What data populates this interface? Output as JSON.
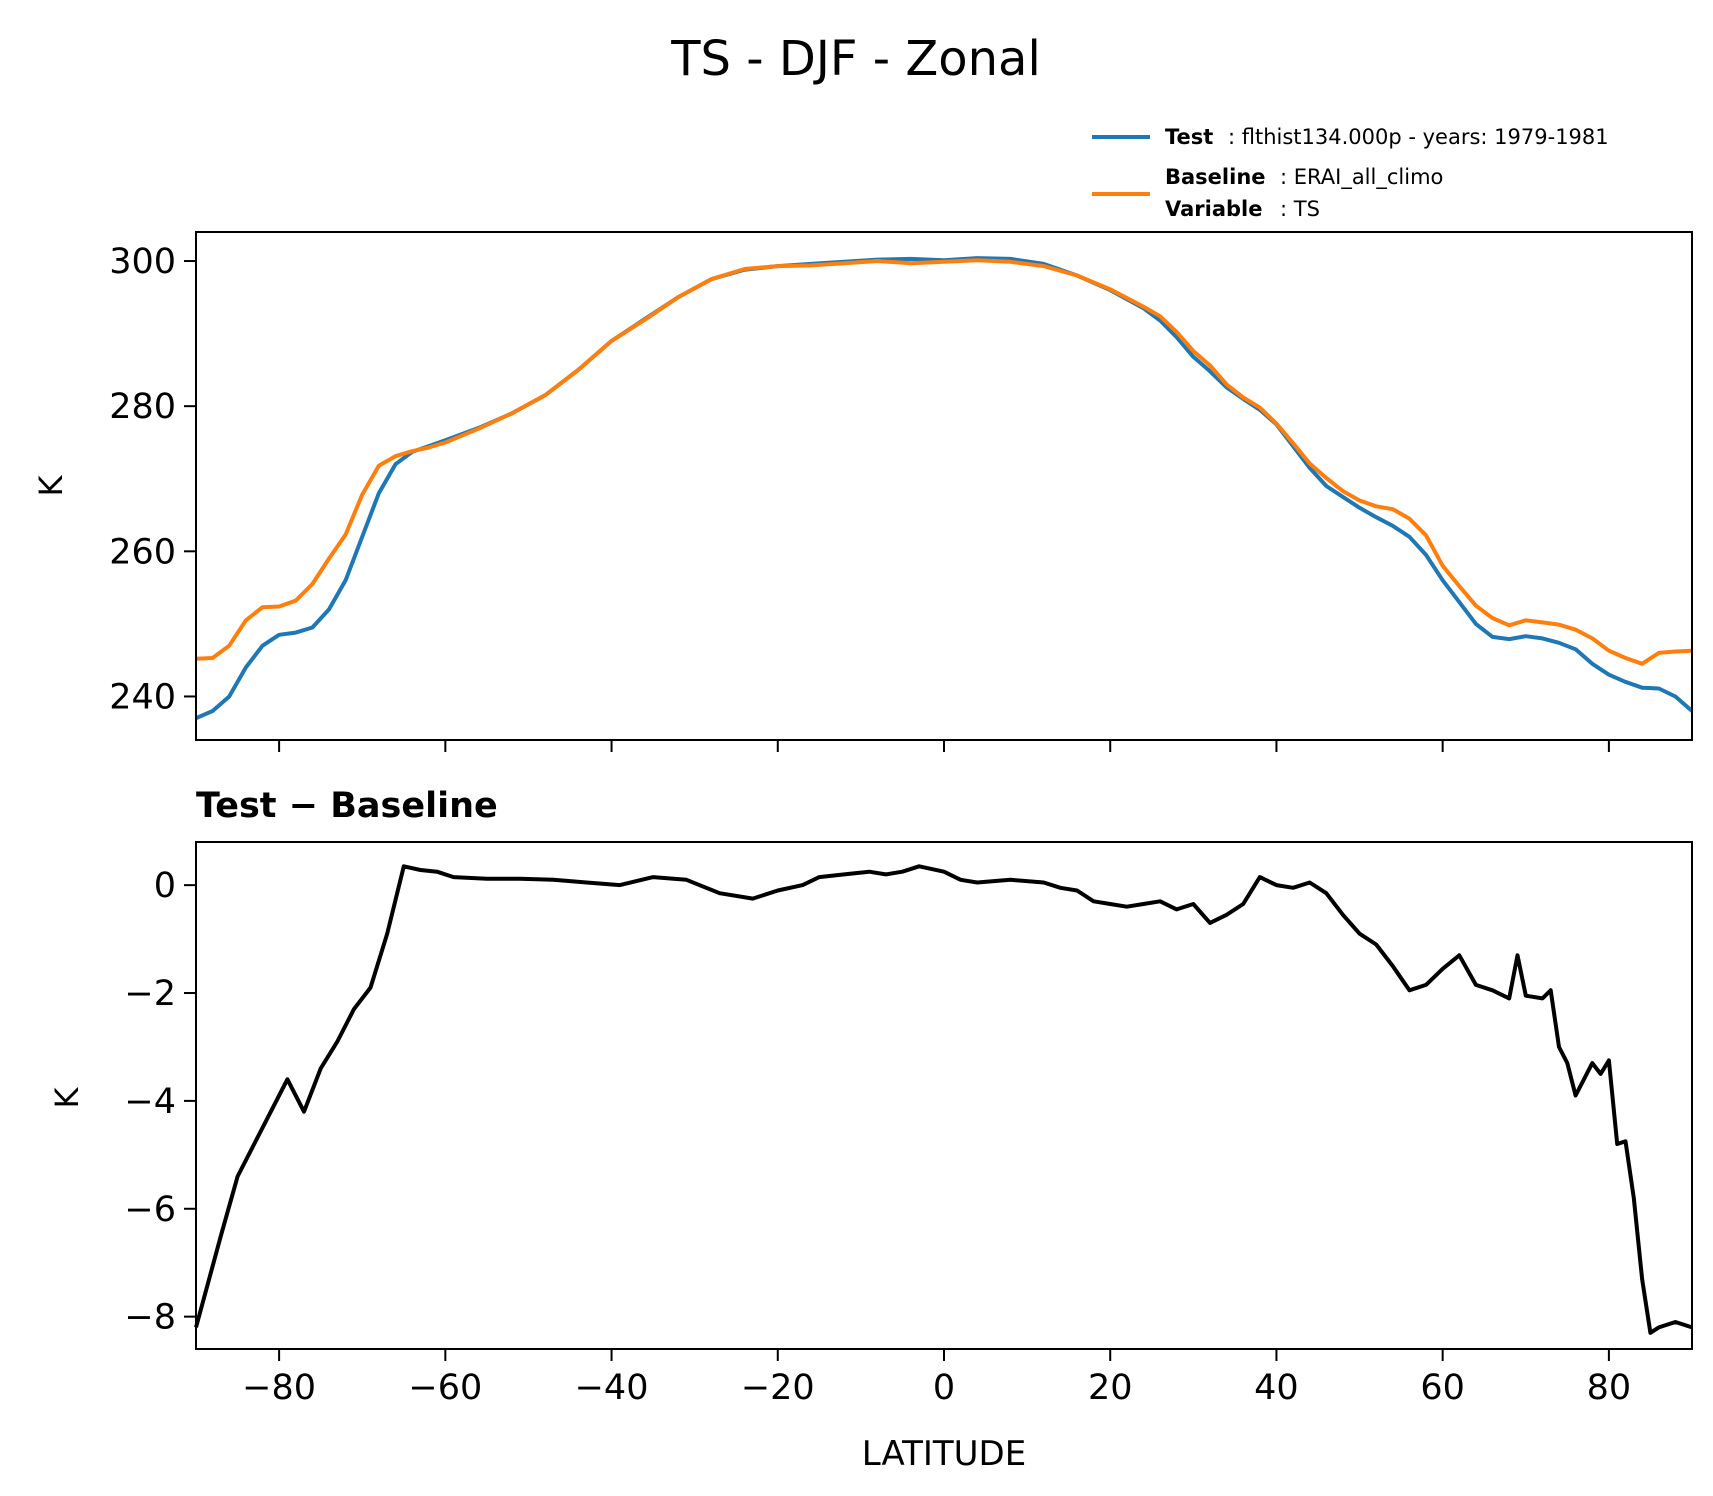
{
  "figure": {
    "title": "TS - DJF - Zonal"
  },
  "legend": {
    "test": {
      "key": "Test",
      "value": ": flthist134.000p - years: 1979-1981",
      "color": "#1f77b4"
    },
    "baseline": {
      "key": "Baseline",
      "value": ": ERAI_all_climo",
      "color": "#ff7f0e"
    },
    "variable": {
      "key": "Variable",
      "value": ": TS"
    }
  },
  "chart_data": [
    {
      "type": "line",
      "ylabel": "K",
      "xlim": [
        -90,
        90
      ],
      "ylim": [
        234,
        304
      ],
      "xticks": [
        -80,
        -60,
        -40,
        -20,
        0,
        20,
        40,
        60,
        80
      ],
      "yticks": [
        240,
        260,
        280,
        300
      ],
      "ytick_labels": [
        "240",
        "260",
        "280",
        "300"
      ],
      "grid": false,
      "legend_position": "top-right",
      "series": [
        {
          "name": "Test",
          "color": "#1f77b4",
          "x": [
            -90,
            -88,
            -86,
            -84,
            -82,
            -80,
            -78,
            -76,
            -74,
            -72,
            -70,
            -68,
            -66,
            -64,
            -62,
            -60,
            -56,
            -52,
            -48,
            -44,
            -40,
            -36,
            -32,
            -28,
            -24,
            -20,
            -16,
            -12,
            -8,
            -4,
            0,
            4,
            8,
            12,
            16,
            20,
            24,
            26,
            28,
            30,
            32,
            34,
            36,
            38,
            40,
            42,
            44,
            46,
            48,
            50,
            52,
            54,
            56,
            58,
            60,
            62,
            64,
            66,
            68,
            70,
            72,
            74,
            76,
            78,
            80,
            82,
            84,
            86,
            88,
            90
          ],
          "values": [
            237,
            238,
            240,
            244,
            247,
            248.5,
            248.8,
            249.5,
            252,
            256,
            262,
            268,
            272,
            273.7,
            274.5,
            275.3,
            277,
            279,
            281.5,
            285,
            289,
            292,
            295,
            297.5,
            298.8,
            299.3,
            299.6,
            299.9,
            300.2,
            300.3,
            300.1,
            300.4,
            300.3,
            299.6,
            298,
            296,
            293.5,
            291.8,
            289.5,
            286.8,
            284.8,
            282.6,
            281,
            279.5,
            277.5,
            274.5,
            271.5,
            269,
            267.5,
            266,
            264.7,
            263.5,
            262,
            259.5,
            256,
            253,
            250,
            248.2,
            247.9,
            248.3,
            248,
            247.4,
            246.5,
            244.5,
            243,
            242,
            241.2,
            241.1,
            240,
            238
          ]
        },
        {
          "name": "Baseline",
          "color": "#ff7f0e",
          "x": [
            -90,
            -88,
            -86,
            -84,
            -82,
            -80,
            -78,
            -76,
            -74,
            -72,
            -70,
            -68,
            -66,
            -64,
            -62,
            -60,
            -56,
            -52,
            -48,
            -44,
            -40,
            -36,
            -32,
            -28,
            -24,
            -20,
            -16,
            -12,
            -8,
            -4,
            0,
            4,
            8,
            12,
            16,
            20,
            24,
            26,
            28,
            30,
            32,
            34,
            36,
            38,
            40,
            42,
            44,
            46,
            48,
            50,
            52,
            54,
            56,
            58,
            60,
            62,
            64,
            66,
            68,
            70,
            72,
            74,
            76,
            78,
            80,
            82,
            84,
            86,
            88,
            90
          ],
          "values": [
            245.2,
            245.3,
            247,
            250.5,
            252.3,
            252.4,
            253.2,
            255.5,
            259,
            262.3,
            267.8,
            271.8,
            273.1,
            273.8,
            274.3,
            275,
            276.9,
            279,
            281.5,
            285,
            289,
            291.9,
            295,
            297.5,
            298.9,
            299.3,
            299.4,
            299.7,
            300,
            299.7,
            299.9,
            300.1,
            299.9,
            299.3,
            298,
            296.1,
            293.7,
            292.4,
            290.2,
            287.6,
            285.6,
            283,
            281.2,
            279.8,
            277.6,
            274.9,
            272.1,
            270.1,
            268.3,
            267,
            266.2,
            265.8,
            264.5,
            262.2,
            258,
            255.2,
            252.5,
            250.8,
            249.8,
            250.5,
            250.2,
            249.9,
            249.2,
            248,
            246.3,
            245.3,
            244.5,
            246,
            246.2,
            246.3
          ]
        }
      ]
    },
    {
      "type": "line",
      "title": "Test − Baseline",
      "xlabel": "LATITUDE",
      "ylabel": "K",
      "xlim": [
        -90,
        90
      ],
      "ylim": [
        -8.6,
        0.8
      ],
      "xticks": [
        -80,
        -60,
        -40,
        -20,
        0,
        20,
        40,
        60,
        80
      ],
      "xtick_labels": [
        "−80",
        "−60",
        "−40",
        "−20",
        "0",
        "20",
        "40",
        "60",
        "80"
      ],
      "yticks": [
        -8,
        -6,
        -4,
        -2,
        0
      ],
      "ytick_labels": [
        "−8",
        "−6",
        "−4",
        "−2",
        "0"
      ],
      "grid": false,
      "series": [
        {
          "color": "#000000",
          "x": [
            -90,
            -87,
            -85,
            -83,
            -81,
            -79,
            -77,
            -75,
            -73,
            -71,
            -69,
            -67,
            -65,
            -63,
            -61,
            -59,
            -55,
            -51,
            -47,
            -43,
            -39,
            -35,
            -31,
            -27,
            -23,
            -20,
            -17,
            -15,
            -12,
            -9,
            -7,
            -5,
            -3,
            0,
            2,
            4,
            8,
            12,
            14,
            16,
            18,
            20,
            22,
            24,
            26,
            28,
            30,
            32,
            34,
            36,
            38,
            40,
            42,
            44,
            46,
            48,
            50,
            52,
            54,
            56,
            58,
            60,
            62,
            64,
            66,
            68,
            69,
            70,
            72,
            73,
            74,
            75,
            76,
            78,
            79,
            80,
            81,
            82,
            83,
            84,
            85,
            86,
            88,
            90
          ],
          "values": [
            -8.2,
            -6.5,
            -5.4,
            -4.8,
            -4.2,
            -3.6,
            -4.2,
            -3.4,
            -2.9,
            -2.3,
            -1.9,
            -0.9,
            0.35,
            0.28,
            0.25,
            0.15,
            0.12,
            0.12,
            0.1,
            0.05,
            0.0,
            0.15,
            0.1,
            -0.15,
            -0.25,
            -0.1,
            0.0,
            0.15,
            0.2,
            0.25,
            0.2,
            0.25,
            0.35,
            0.25,
            0.1,
            0.05,
            0.1,
            0.05,
            -0.05,
            -0.1,
            -0.3,
            -0.35,
            -0.4,
            -0.35,
            -0.3,
            -0.45,
            -0.35,
            -0.7,
            -0.55,
            -0.35,
            0.15,
            0.0,
            -0.05,
            0.05,
            -0.15,
            -0.55,
            -0.9,
            -1.1,
            -1.5,
            -1.95,
            -1.85,
            -1.55,
            -1.3,
            -1.85,
            -1.95,
            -2.1,
            -1.3,
            -2.05,
            -2.1,
            -1.95,
            -3.0,
            -3.3,
            -3.9,
            -3.3,
            -3.5,
            -3.25,
            -4.8,
            -4.75,
            -5.8,
            -7.3,
            -8.3,
            -8.2,
            -8.1,
            -8.2
          ]
        }
      ]
    }
  ]
}
